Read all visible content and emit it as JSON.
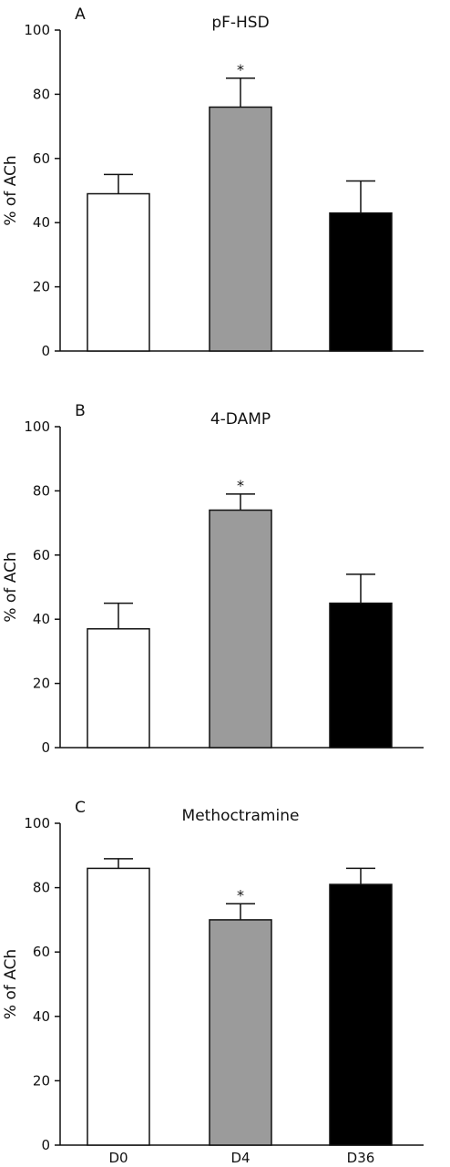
{
  "figure": {
    "ylabel": "% of ACh",
    "categories": [
      "D0",
      "D4",
      "D36"
    ],
    "bar_colors": [
      "#ffffff",
      "#9b9b9b",
      "#000000"
    ],
    "yticks": [
      0,
      20,
      40,
      60,
      80,
      100
    ]
  },
  "chart_data": [
    {
      "type": "bar",
      "panel": "A",
      "title": "pF-HSD",
      "ylabel": "% of ACh",
      "ylim": [
        0,
        100
      ],
      "categories": [
        "D0",
        "D4",
        "D36"
      ],
      "values": [
        49,
        76,
        43
      ],
      "errors": [
        6,
        9,
        10
      ],
      "significance": [
        "",
        "*",
        ""
      ]
    },
    {
      "type": "bar",
      "panel": "B",
      "title": "4-DAMP",
      "ylabel": "% of ACh",
      "ylim": [
        0,
        100
      ],
      "categories": [
        "D0",
        "D4",
        "D36"
      ],
      "values": [
        37,
        74,
        45
      ],
      "errors": [
        8,
        5,
        9
      ],
      "significance": [
        "",
        "*",
        ""
      ]
    },
    {
      "type": "bar",
      "panel": "C",
      "title": "Methoctramine",
      "ylabel": "% of ACh",
      "ylim": [
        0,
        100
      ],
      "categories": [
        "D0",
        "D4",
        "D36"
      ],
      "values": [
        86,
        70,
        81
      ],
      "errors": [
        3,
        5,
        5
      ],
      "significance": [
        "",
        "*",
        ""
      ]
    }
  ]
}
